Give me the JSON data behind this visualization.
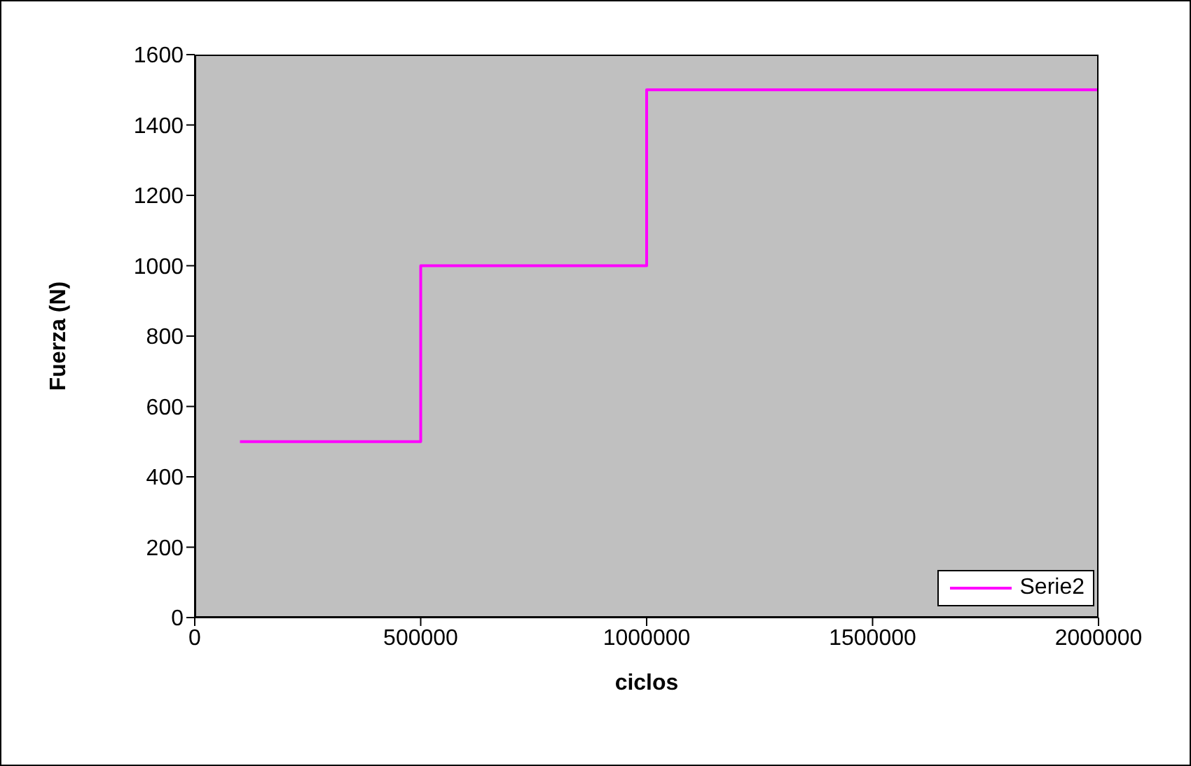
{
  "chart_data": {
    "type": "line",
    "xlabel": "ciclos",
    "ylabel": "Fuerza (N)",
    "x": [
      100000,
      500000,
      500000,
      1000000,
      1000000,
      2000000
    ],
    "series": [
      {
        "name": "Serie2",
        "color": "#ff00ff",
        "values": [
          500,
          500,
          1000,
          1000,
          1500,
          1500
        ]
      }
    ],
    "xlim": [
      0,
      2000000
    ],
    "xticks": [
      0,
      500000,
      1000000,
      1500000,
      2000000
    ],
    "ylim": [
      0,
      1600
    ],
    "yticks": [
      0,
      200,
      400,
      600,
      800,
      1000,
      1200,
      1400,
      1600
    ],
    "legend": "bottom right",
    "marker": "none",
    "line_style": "solid"
  }
}
